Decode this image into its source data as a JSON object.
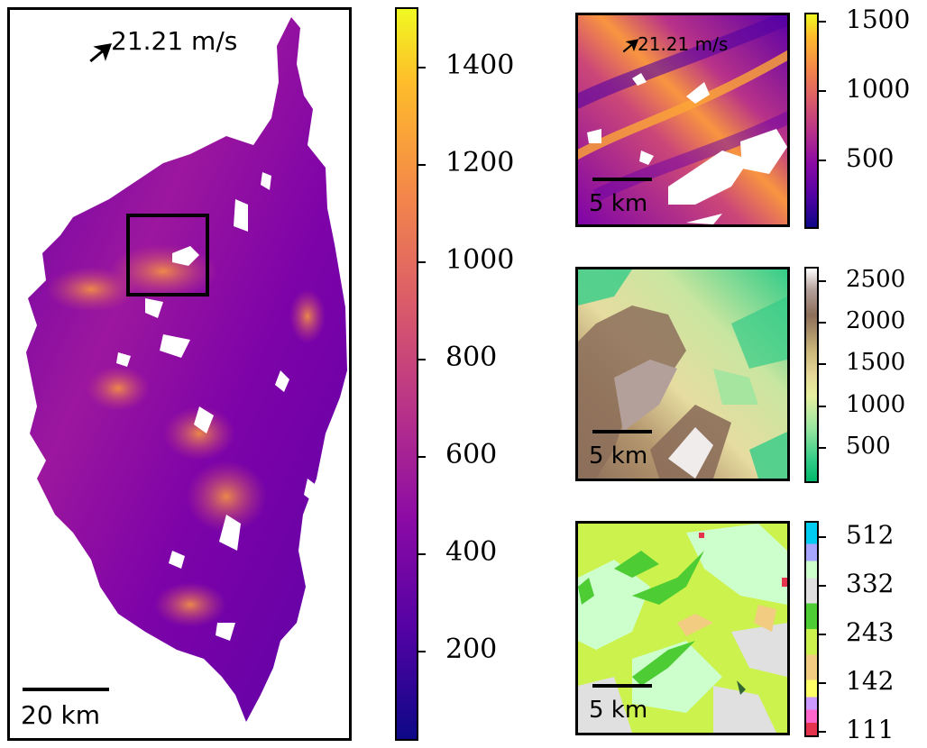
{
  "chart_data": [
    {
      "type": "heatmap",
      "panel": "main",
      "wind_label": "21.21 m/s",
      "scale_label": "20 km",
      "colormap": "plasma",
      "colorbar_ticks": [
        200,
        400,
        600,
        800,
        1000,
        1200,
        1400
      ],
      "colorbar_range": [
        20,
        1520
      ],
      "inset_box": true
    },
    {
      "type": "heatmap",
      "panel": "inset-wind",
      "wind_label": "21.21 m/s",
      "scale_label": "5 km",
      "colormap": "plasma",
      "colorbar_ticks": [
        500,
        1000,
        1500
      ],
      "colorbar_range": [
        20,
        1550
      ]
    },
    {
      "type": "heatmap",
      "panel": "inset-elevation",
      "scale_label": "5 km",
      "colormap": "terrain",
      "colorbar_ticks": [
        500,
        1000,
        1500,
        2000,
        2500
      ],
      "colorbar_range": [
        100,
        2650
      ]
    },
    {
      "type": "heatmap",
      "panel": "inset-landcover",
      "scale_label": "5 km",
      "colormap": "categorical",
      "colorbar_ticks": [
        111,
        142,
        243,
        332,
        512
      ]
    }
  ],
  "colors": {
    "plasma": [
      "#0d0887",
      "#5302a3",
      "#8b0aa5",
      "#b83289",
      "#db5c68",
      "#f48849",
      "#febd2a",
      "#f0f921"
    ],
    "terrain": [
      "#33cc88",
      "#99e6a0",
      "#e6f0a0",
      "#c8b478",
      "#8c6e5a",
      "#b4a09a",
      "#f0ecec"
    ],
    "landcover": [
      "#e6334d",
      "#ff66cc",
      "#cc99ff",
      "#ffff66",
      "#f2cc80",
      "#ccf24d",
      "#4dcc33",
      "#e0e0e0",
      "#ccffcc",
      "#a6a6ff",
      "#00ccf2"
    ]
  }
}
